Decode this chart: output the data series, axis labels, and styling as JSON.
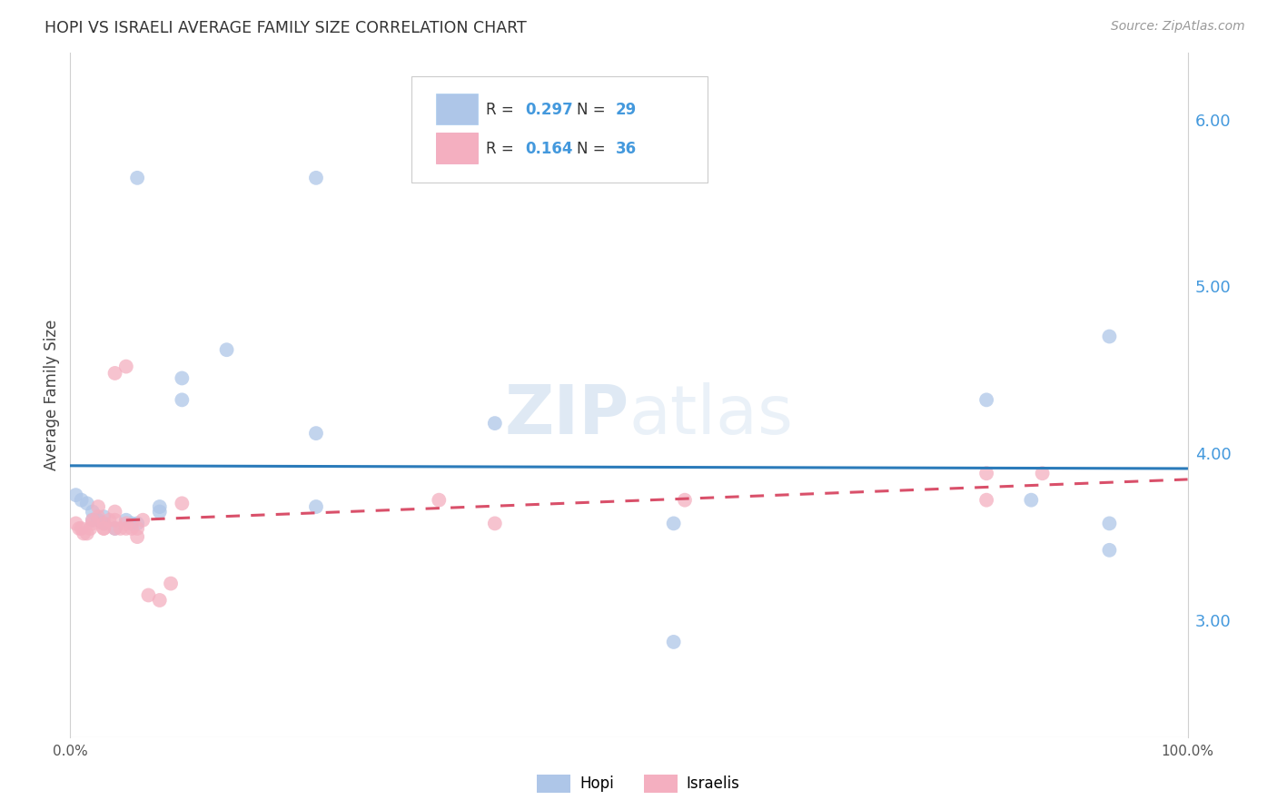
{
  "title": "HOPI VS ISRAELI AVERAGE FAMILY SIZE CORRELATION CHART",
  "source": "Source: ZipAtlas.com",
  "ylabel": "Average Family Size",
  "watermark": "ZIPatlas",
  "hopi_R": "0.297",
  "hopi_N": "29",
  "israeli_R": "0.164",
  "israeli_N": "36",
  "hopi_color": "#aec6e8",
  "israeli_color": "#f4afc0",
  "hopi_line_color": "#2b7bba",
  "israeli_line_color": "#d9506a",
  "right_axis_color": "#4499dd",
  "xlim": [
    0.0,
    1.0
  ],
  "ylim": [
    2.3,
    6.4
  ],
  "right_yticks": [
    3.0,
    4.0,
    5.0,
    6.0
  ],
  "hopi_x": [
    0.005,
    0.01,
    0.015,
    0.02,
    0.02,
    0.025,
    0.03,
    0.03,
    0.04,
    0.05,
    0.055,
    0.06,
    0.08,
    0.08,
    0.1,
    0.1,
    0.14,
    0.22,
    0.22,
    0.22,
    0.38,
    0.54,
    0.54,
    0.82,
    0.86,
    0.93,
    0.93,
    0.93,
    0.06
  ],
  "hopi_y": [
    3.75,
    3.72,
    3.7,
    3.65,
    3.6,
    3.6,
    3.62,
    3.58,
    3.55,
    3.6,
    3.58,
    3.58,
    3.68,
    3.65,
    4.32,
    4.45,
    4.62,
    3.68,
    4.12,
    5.65,
    4.18,
    3.58,
    2.87,
    4.32,
    3.72,
    3.58,
    3.42,
    4.7,
    5.65
  ],
  "israeli_x": [
    0.005,
    0.008,
    0.01,
    0.012,
    0.015,
    0.018,
    0.02,
    0.02,
    0.025,
    0.025,
    0.03,
    0.03,
    0.03,
    0.035,
    0.04,
    0.04,
    0.04,
    0.04,
    0.045,
    0.05,
    0.05,
    0.05,
    0.055,
    0.06,
    0.06,
    0.065,
    0.07,
    0.08,
    0.09,
    0.1,
    0.33,
    0.38,
    0.55,
    0.82,
    0.82,
    0.87
  ],
  "israeli_y": [
    3.58,
    3.55,
    3.55,
    3.52,
    3.52,
    3.55,
    3.58,
    3.6,
    3.62,
    3.68,
    3.55,
    3.55,
    3.58,
    3.6,
    3.55,
    3.6,
    3.65,
    4.48,
    3.55,
    3.55,
    3.58,
    4.52,
    3.55,
    3.5,
    3.55,
    3.6,
    3.15,
    3.12,
    3.22,
    3.7,
    3.72,
    3.58,
    3.72,
    3.72,
    3.88,
    3.88
  ],
  "bg_color": "#ffffff",
  "grid_color": "#cccccc"
}
